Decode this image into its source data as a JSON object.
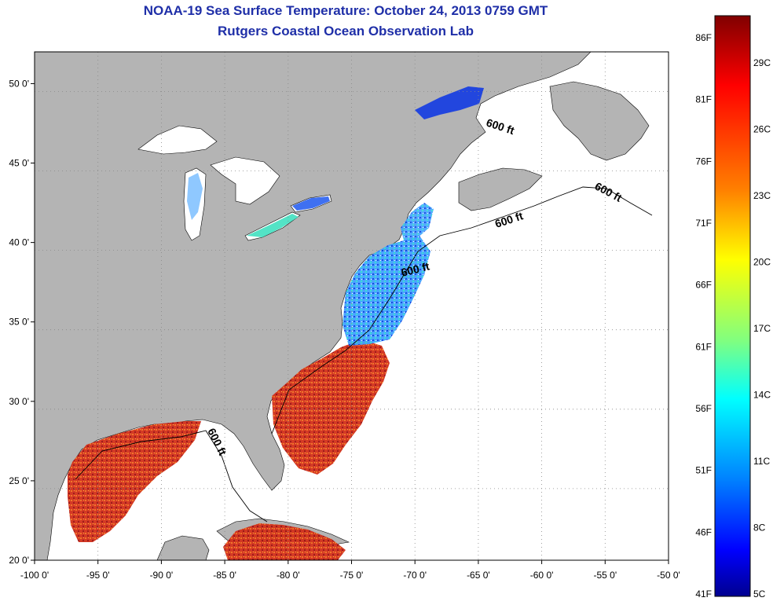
{
  "header": {
    "title": "NOAA-19 Sea Surface Temperature:  October 24, 2013 0759 GMT",
    "subtitle": "Rutgers Coastal Ocean Observation Lab"
  },
  "map": {
    "lon_range": [
      -100,
      -50
    ],
    "lat_range": [
      20,
      52
    ],
    "lon_ticks": [
      {
        "value": -100,
        "label": "-100 0'"
      },
      {
        "value": -95,
        "label": "-95 0'"
      },
      {
        "value": -90,
        "label": "-90 0'"
      },
      {
        "value": -85,
        "label": "-85 0'"
      },
      {
        "value": -80,
        "label": "-80 0'"
      },
      {
        "value": -75,
        "label": "-75 0'"
      },
      {
        "value": -70,
        "label": "-70 0'"
      },
      {
        "value": -65,
        "label": "-65 0'"
      },
      {
        "value": -60,
        "label": "-60 0'"
      },
      {
        "value": -55,
        "label": "-55 0'"
      },
      {
        "value": -50,
        "label": "-50 0'"
      }
    ],
    "lat_ticks": [
      {
        "value": 50,
        "label": "50 0'"
      },
      {
        "value": 45,
        "label": "45 0'"
      },
      {
        "value": 40,
        "label": "40 0'"
      },
      {
        "value": 35,
        "label": "35 0'"
      },
      {
        "value": 30,
        "label": "30 0'"
      },
      {
        "value": 25,
        "label": "25 0'"
      },
      {
        "value": 20,
        "label": "20 0'"
      }
    ],
    "contour_label": "600 ft",
    "land_color": "#b4b4b4",
    "ocean_color": "#ffffff",
    "grid": "dotted"
  },
  "colorbar": {
    "fahrenheit_labels": [
      "86F",
      "81F",
      "76F",
      "71F",
      "66F",
      "61F",
      "56F",
      "51F",
      "46F",
      "41F"
    ],
    "celsius_labels": [
      "29C",
      "26C",
      "23C",
      "20C",
      "17C",
      "14C",
      "11C",
      "8C",
      "5C"
    ],
    "colors_top_to_bottom": [
      "#800000",
      "#ff0000",
      "#ff8000",
      "#ffff00",
      "#80ff80",
      "#00ffff",
      "#0080ff",
      "#0000ff",
      "#00008f"
    ]
  }
}
